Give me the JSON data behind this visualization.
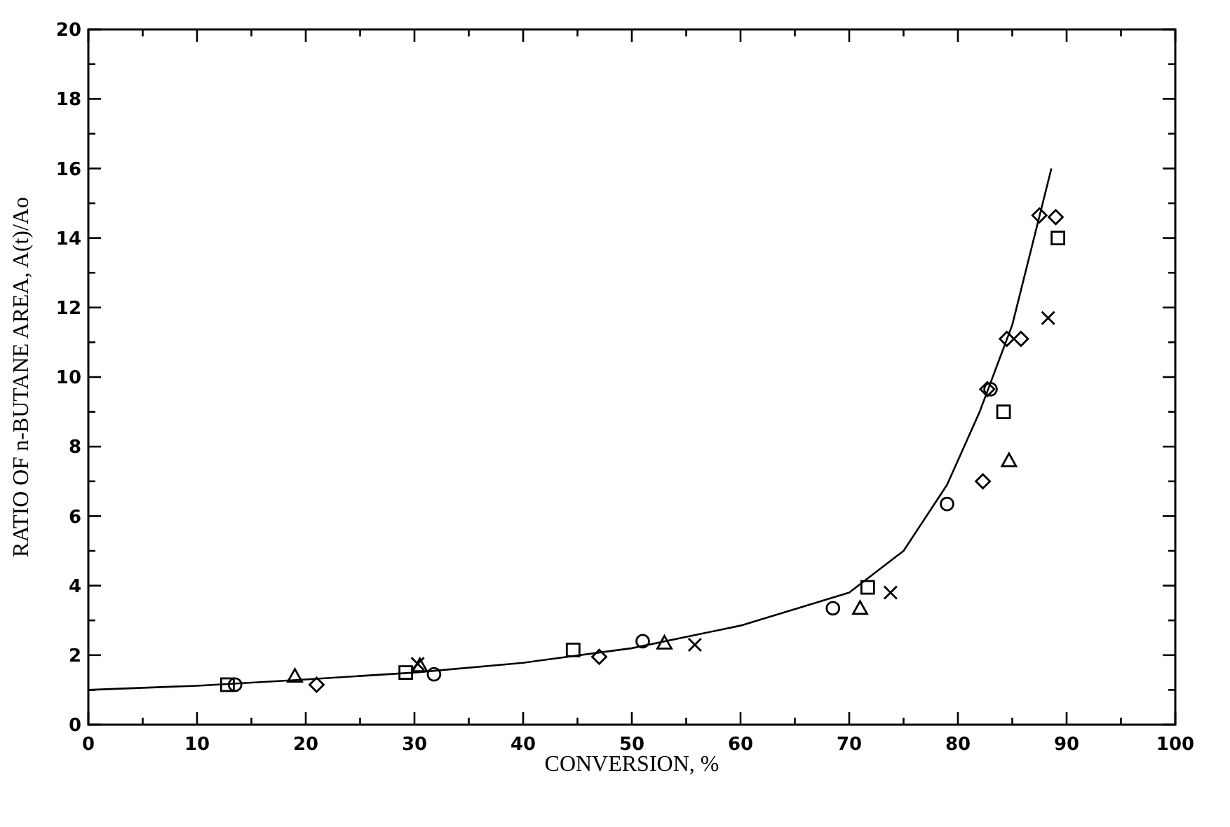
{
  "chart_data": {
    "type": "scatter",
    "xlabel": "CONVERSION, %",
    "ylabel": "RATIO OF n-BUTANE AREA, A(t)/Ao",
    "xlim": [
      0,
      100
    ],
    "ylim": [
      0,
      20
    ],
    "xticks": [
      0,
      {
        "value": 5,
        "label": null
      },
      10,
      {
        "value": 15,
        "label": null
      },
      20,
      {
        "value": 25,
        "label": null
      },
      30,
      {
        "value": 35,
        "label": null
      },
      40,
      {
        "value": 45,
        "label": null
      },
      50,
      {
        "value": 55,
        "label": null
      },
      60,
      {
        "value": 65,
        "label": null
      },
      70,
      {
        "value": 75,
        "label": null
      },
      80,
      {
        "value": 85,
        "label": null
      },
      90,
      {
        "value": 95,
        "label": null
      },
      100
    ],
    "yticks": [
      0,
      {
        "value": 1,
        "label": null
      },
      2,
      {
        "value": 3,
        "label": null
      },
      4,
      {
        "value": 5,
        "label": null
      },
      6,
      {
        "value": 7,
        "label": null
      },
      8,
      {
        "value": 9,
        "label": null
      },
      10,
      {
        "value": 11,
        "label": null
      },
      12,
      {
        "value": 13,
        "label": null
      },
      14,
      {
        "value": 15,
        "label": null
      },
      16,
      {
        "value": 17,
        "label": null
      },
      18,
      {
        "value": 19,
        "label": null
      },
      20
    ],
    "grid": false,
    "series": [
      {
        "type": "line",
        "color": "#000000",
        "marker": "none",
        "line_style": "solid",
        "x": [
          0,
          10,
          20,
          30,
          40,
          50,
          60,
          70,
          75,
          79,
          82,
          85,
          88.6
        ],
        "values": [
          1,
          1.12,
          1.3,
          1.5,
          1.78,
          2.2,
          2.85,
          3.8,
          5.0,
          6.9,
          9.0,
          11.5,
          16.0
        ]
      },
      {
        "color": "#000000",
        "marker": "square",
        "x": [
          12.8,
          29.2,
          44.6,
          71.7,
          84.2,
          89.2
        ],
        "values": [
          1.15,
          1.5,
          2.15,
          3.95,
          9.0,
          14.0
        ]
      },
      {
        "color": "#000000",
        "marker": "circle",
        "x": [
          13.5,
          31.8,
          51,
          68.5,
          79,
          83
        ],
        "values": [
          1.15,
          1.45,
          2.4,
          3.35,
          6.35,
          9.65
        ]
      },
      {
        "color": "#000000",
        "marker": "triangle",
        "x": [
          19,
          30.5,
          53,
          71,
          84.7
        ],
        "values": [
          1.4,
          1.7,
          2.35,
          3.35,
          7.6
        ]
      },
      {
        "color": "#000000",
        "marker": "diamond",
        "x": [
          21,
          47,
          82.3,
          85.8,
          89
        ],
        "values": [
          1.15,
          1.95,
          7.0,
          11.1,
          14.6
        ]
      },
      {
        "color": "#000000",
        "marker": "cross",
        "x": [
          30.3,
          55.8,
          73.8,
          88.3
        ],
        "values": [
          1.75,
          2.3,
          3.8,
          11.7
        ]
      },
      {
        "color": "#000000",
        "marker": "diamond",
        "x": [
          82.7,
          84.5,
          87.5
        ],
        "values": [
          9.65,
          11.1,
          14.65
        ]
      }
    ]
  }
}
